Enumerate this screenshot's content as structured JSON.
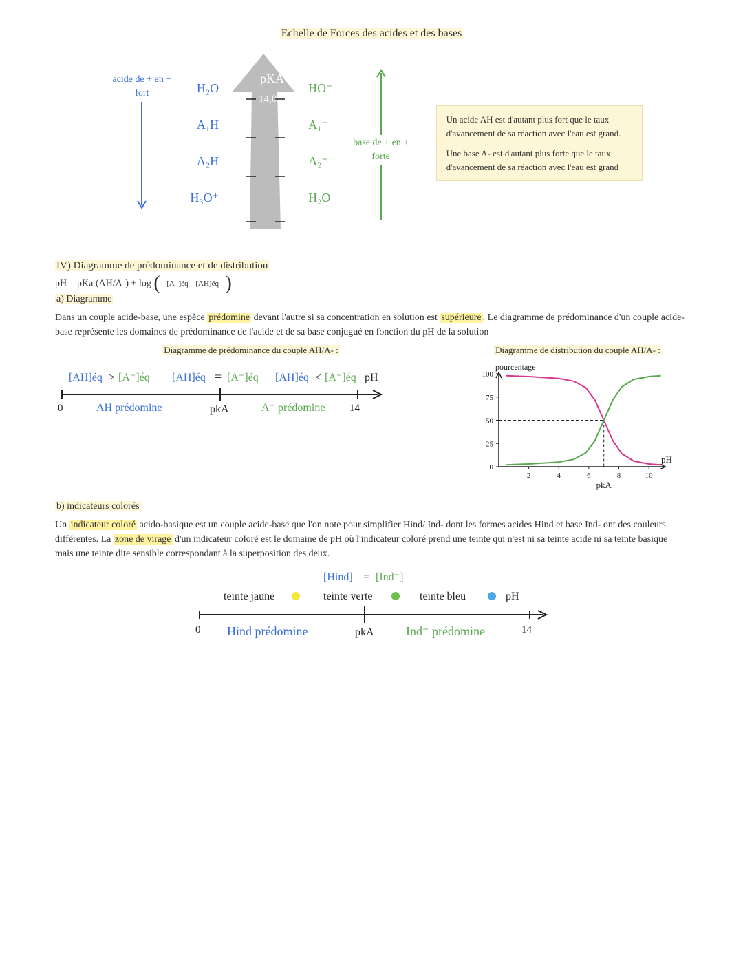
{
  "colors": {
    "highlight_yellow": "#fff3a0",
    "highlight_pale": "#fdf7d8",
    "blue": "#3a6fd8",
    "green": "#5aa84f",
    "grey_arrow": "#bcbcbc",
    "pink": "#d8378f",
    "black": "#222222",
    "note_bg": "#fdf7d8",
    "yellow_dot": "#f5e63a",
    "green_dot": "#6fbf4d",
    "blue_dot": "#4ea6e6"
  },
  "title_top": "Echelle de Forces des acides et des bases",
  "scale": {
    "left_label_line1": "acide de + en +",
    "left_label_line2": "fort",
    "right_label_line1": "base de + en +",
    "right_label_line2": "forte",
    "arrow_label": "pKA",
    "top_value": "14,0",
    "rows": [
      {
        "acid": "H₂O",
        "base": "HO⁻"
      },
      {
        "acid": "A₁H",
        "base": "A₁⁻"
      },
      {
        "acid": "A₂H",
        "base": "A₂⁻"
      },
      {
        "acid": "H₃O⁺",
        "base": "H₂O"
      }
    ]
  },
  "note": {
    "line1": "Un acide AH est d'autant plus fort que le taux d'avancement de sa réaction avec l'eau est grand.",
    "line2": "Une base A- est d'autant plus forte que le taux d'avancement de sa réaction avec l'eau est grand"
  },
  "section4": {
    "title": "IV) Diagramme de prédominance et de distribution",
    "formula_prefix": "pH = pKa (AH/A-) + log",
    "frac_num": "[A⁻]éq",
    "frac_den": "[AH]éq",
    "sub_a": "a) Diagramme",
    "para1_a": "Dans un couple acide-base, une espèce ",
    "para1_b": "prédomine",
    "para1_c": " devant l'autre si sa concentration en solution est ",
    "para1_d": "supérieure",
    "para1_e": ". Le diagramme de prédominance d'un couple acide-base représente les domaines de prédominance de l'acide et de sa base conjugué en fonction du pH de la solution",
    "left_diag_title": "Diagramme de prédominance du couple AH/A- :",
    "right_diag_title": "Diagramme de distribution du couple AH/A- :",
    "predom_line": {
      "zero": "0",
      "fourteen": "14",
      "pka": "pkA",
      "ph": "pH",
      "left_rel_a": "[AH]éq",
      "left_rel_b": "[A⁻]éq",
      "gt": ">",
      "eq": "=",
      "lt": "<",
      "ah_pred": "AH prédomine",
      "a_pred": "A⁻ prédomine"
    },
    "distribution_chart": {
      "type": "line",
      "xlabel": "pH",
      "ylabel": "pourcentage",
      "xlim": [
        0,
        11
      ],
      "ylim": [
        0,
        100
      ],
      "xticks": [
        2,
        4,
        6,
        8,
        10
      ],
      "yticks": [
        0,
        25,
        50,
        75,
        100
      ],
      "pka_x": 7,
      "curves": {
        "AH_pink": [
          [
            0.5,
            98
          ],
          [
            2,
            97
          ],
          [
            4,
            95
          ],
          [
            5,
            92
          ],
          [
            5.8,
            85
          ],
          [
            6.4,
            72
          ],
          [
            7,
            50
          ],
          [
            7.6,
            28
          ],
          [
            8.2,
            14
          ],
          [
            9,
            6
          ],
          [
            10,
            3
          ],
          [
            10.8,
            2
          ]
        ],
        "A_green": [
          [
            0.5,
            2
          ],
          [
            2,
            3
          ],
          [
            4,
            5
          ],
          [
            5,
            8
          ],
          [
            5.8,
            15
          ],
          [
            6.4,
            28
          ],
          [
            7,
            50
          ],
          [
            7.6,
            72
          ],
          [
            8.2,
            86
          ],
          [
            9,
            94
          ],
          [
            10,
            97
          ],
          [
            10.8,
            98
          ]
        ]
      },
      "colors": {
        "AH": "#d8378f",
        "A": "#5aa84f",
        "axis": "#222222",
        "dash": "#222222"
      }
    },
    "sub_b": "b) indicateurs colorés",
    "para2_a": "Un ",
    "para2_b": "indicateur coloré",
    "para2_c": " acido-basique est un couple acide-base que l'on note pour simplifier Hind/ Ind- dont les formes acides Hind et base Ind- ont des couleurs différentes. La ",
    "para2_d": "zone de virage",
    "para2_e": " d'un indicateur coloré est le domaine de pH où l'indicateur coloré prend une teinte qui n'est ni sa teinte acide ni sa teinte basique mais une teinte dite sensible correspondant à la superposition des deux.",
    "indicator_line": {
      "eq_left": "[Hind]",
      "eq_right": "[Ind⁻]",
      "teinte_jaune": "teinte jaune",
      "teinte_verte": "teinte verte",
      "teinte_bleu": "teinte bleu",
      "ph": "pH",
      "zero": "0",
      "fourteen": "14",
      "pka": "pkA",
      "hind_pred": "Hind prédomine",
      "ind_pred": "Ind⁻ prédomine"
    }
  }
}
